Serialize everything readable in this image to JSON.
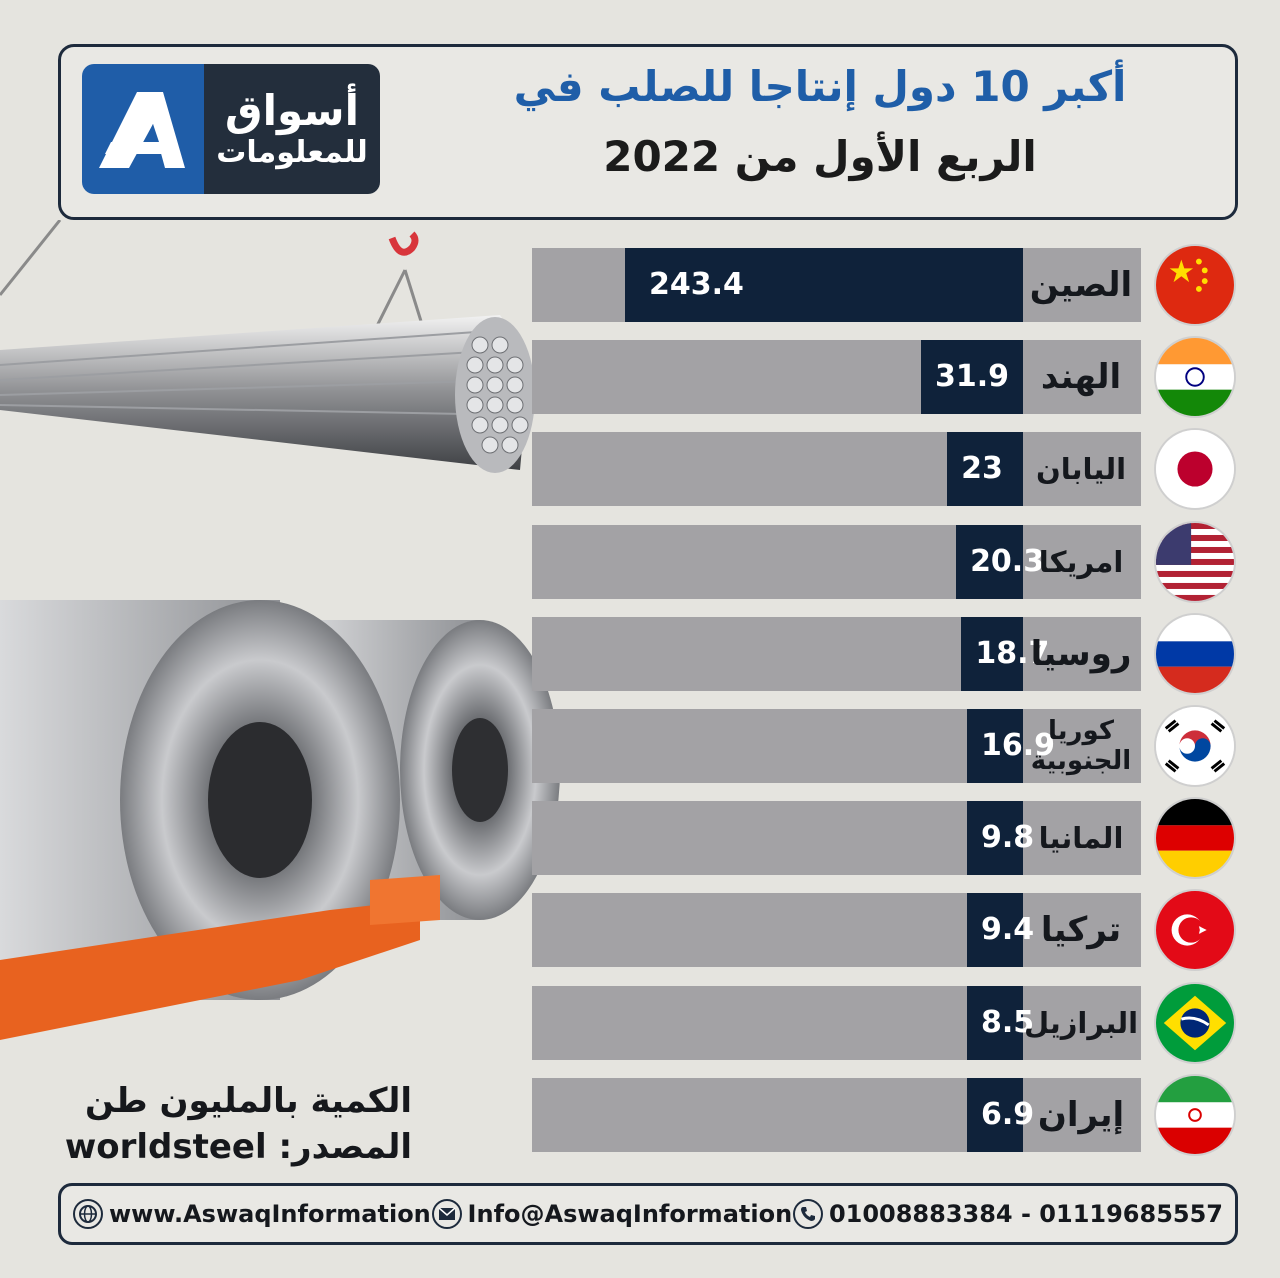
{
  "header": {
    "title_line1": "أكبر 10 دول إنتاجا للصلب في",
    "title_line2": "الربع الأول من 2022"
  },
  "logo": {
    "line1": "أسواق",
    "line2": "للمعلومات"
  },
  "colors": {
    "bar_fill": "#0f223a",
    "bar_bg": "#a3a2a5",
    "title_blue": "#1f5ea8",
    "logo_blue": "#1f5da8",
    "logo_dark": "#232e3c"
  },
  "chart_data": {
    "type": "bar",
    "orientation": "horizontal",
    "title": "أكبر 10 دول إنتاجا للصلب في الربع الأول من 2022",
    "categories": [
      "الصين",
      "الهند",
      "اليابان",
      "امريكا",
      "روسيا",
      "كوريا الجنوبية",
      "المانيا",
      "تركيا",
      "البرازيل",
      "إيران"
    ],
    "values": [
      243.4,
      31.9,
      23,
      20.3,
      18.7,
      16.9,
      9.8,
      9.4,
      8.5,
      6.9
    ],
    "value_labels": [
      "243.4",
      "31.9",
      "23",
      "20.3",
      "18.7",
      "16.9",
      "9.8",
      "9.4",
      "8.5",
      "6.9"
    ],
    "flags": [
      "china-flag-icon",
      "india-flag-icon",
      "japan-flag-icon",
      "usa-flag-icon",
      "russia-flag-icon",
      "south-korea-flag-icon",
      "germany-flag-icon",
      "turkey-flag-icon",
      "brazil-flag-icon",
      "iran-flag-icon"
    ],
    "xlabel": "",
    "ylabel": ""
  },
  "notes": {
    "unit": "الكمية بالمليون طن",
    "source": "المصدر: worldsteel"
  },
  "footer": {
    "website": "www.AswaqInformation",
    "email": "Info@AswaqInformation",
    "phones": "01008883384 - 01119685557",
    "icons": [
      "globe-icon",
      "mail-icon",
      "phone-icon"
    ]
  }
}
